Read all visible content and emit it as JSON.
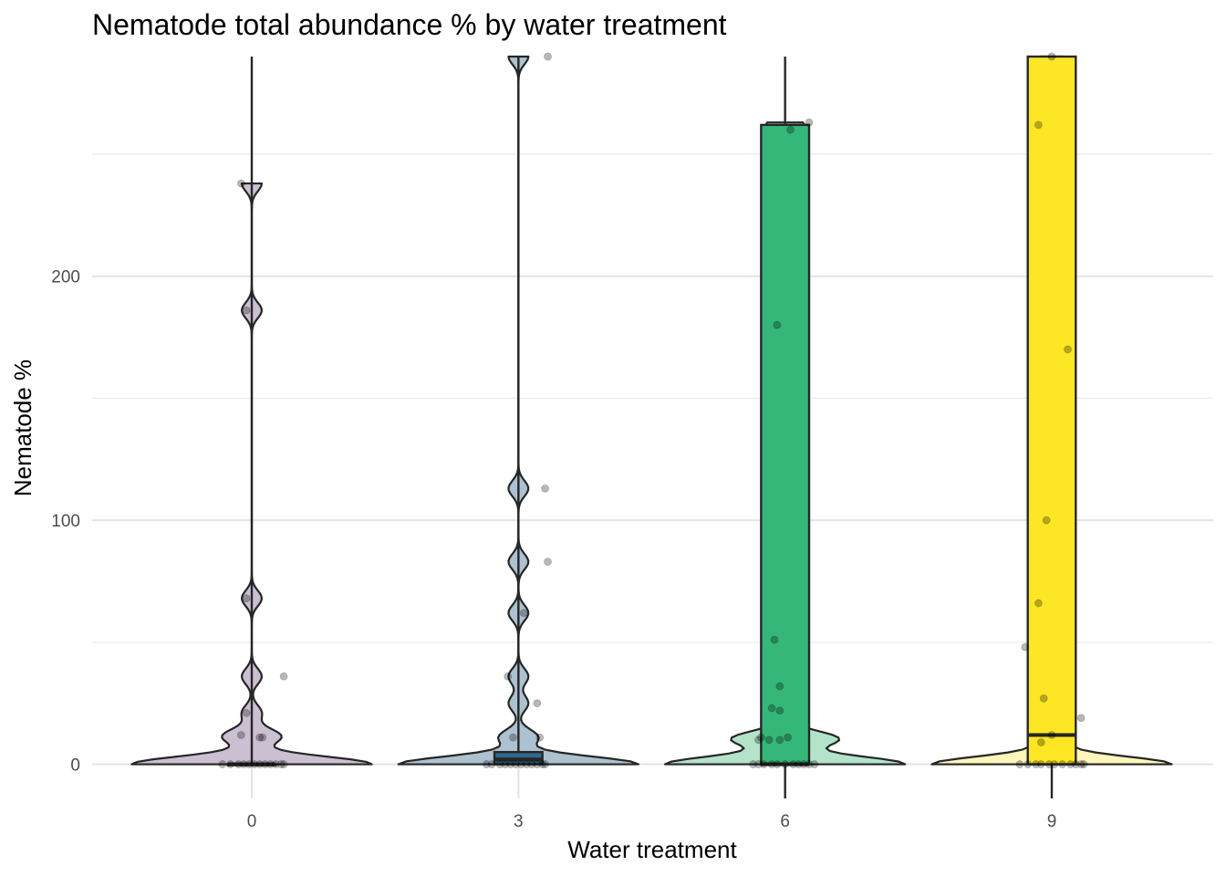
{
  "chart_data": {
    "type": "violin",
    "title": "Nematode total abundance % by water treatment",
    "xlabel": "Water treatment",
    "ylabel": "Nematode %",
    "categories": [
      "0",
      "3",
      "6",
      "9"
    ],
    "ylim": [
      -14,
      290
    ],
    "yticks": [
      0,
      100,
      200
    ],
    "grid": true,
    "legend": "none",
    "colors": {
      "0": "#440154",
      "3": "#31688e",
      "6": "#35b779",
      "9": "#fde725"
    },
    "groups": [
      {
        "category": "0",
        "violin_fill": "#cbbfd2",
        "box": {
          "q1": 0,
          "median": 0,
          "q3": 0,
          "whisker_low": 0,
          "whisker_high": 290
        },
        "points": [
          {
            "x": -0.11,
            "y": 0
          },
          {
            "x": -0.08,
            "y": 0
          },
          {
            "x": -0.05,
            "y": 0
          },
          {
            "x": -0.03,
            "y": 0
          },
          {
            "x": -0.01,
            "y": 0
          },
          {
            "x": 0.01,
            "y": 0
          },
          {
            "x": 0.03,
            "y": 0
          },
          {
            "x": 0.05,
            "y": 0
          },
          {
            "x": 0.07,
            "y": 0
          },
          {
            "x": 0.09,
            "y": 0
          },
          {
            "x": 0.11,
            "y": 0
          },
          {
            "x": 0.12,
            "y": 0
          },
          {
            "x": -0.04,
            "y": 12
          },
          {
            "x": -0.02,
            "y": 21
          },
          {
            "x": 0.03,
            "y": 11
          },
          {
            "x": 0.04,
            "y": 11
          },
          {
            "x": 0.12,
            "y": 36
          },
          {
            "x": -0.02,
            "y": 68
          },
          {
            "x": -0.02,
            "y": 186
          },
          {
            "x": -0.04,
            "y": 238
          }
        ]
      },
      {
        "category": "3",
        "violin_fill": "#acc2d1",
        "box": {
          "q1": 0,
          "median": 2,
          "q3": 5,
          "whisker_low": 0,
          "whisker_high": 290
        },
        "points": [
          {
            "x": -0.12,
            "y": 0
          },
          {
            "x": -0.1,
            "y": 0
          },
          {
            "x": -0.07,
            "y": 0
          },
          {
            "x": -0.05,
            "y": 0
          },
          {
            "x": -0.03,
            "y": 0
          },
          {
            "x": -0.01,
            "y": 0
          },
          {
            "x": 0.01,
            "y": 0
          },
          {
            "x": 0.03,
            "y": 0
          },
          {
            "x": 0.05,
            "y": 0
          },
          {
            "x": 0.07,
            "y": 0
          },
          {
            "x": 0.09,
            "y": 0
          },
          {
            "x": 0.1,
            "y": 0
          },
          {
            "x": -0.02,
            "y": 11
          },
          {
            "x": 0.08,
            "y": 11
          },
          {
            "x": -0.04,
            "y": 36
          },
          {
            "x": 0.07,
            "y": 25
          },
          {
            "x": 0.02,
            "y": 62
          },
          {
            "x": 0.11,
            "y": 83
          },
          {
            "x": 0.1,
            "y": 113
          },
          {
            "x": 0.11,
            "y": 290
          }
        ]
      },
      {
        "category": "6",
        "violin_fill": "#b3e4c9",
        "box": {
          "q1": 0,
          "median": 0,
          "q3": 262,
          "whisker_low": -14,
          "whisker_high": 290
        },
        "points": [
          {
            "x": -0.12,
            "y": 0
          },
          {
            "x": -0.1,
            "y": 0
          },
          {
            "x": -0.08,
            "y": 0
          },
          {
            "x": -0.05,
            "y": 0
          },
          {
            "x": -0.03,
            "y": 0
          },
          {
            "x": 0,
            "y": 0
          },
          {
            "x": 0.03,
            "y": 0
          },
          {
            "x": 0.05,
            "y": 0
          },
          {
            "x": 0.07,
            "y": 0
          },
          {
            "x": 0.09,
            "y": 0
          },
          {
            "x": 0.11,
            "y": 0
          },
          {
            "x": -0.1,
            "y": 10
          },
          {
            "x": -0.06,
            "y": 10
          },
          {
            "x": -0.09,
            "y": 11
          },
          {
            "x": -0.02,
            "y": 10
          },
          {
            "x": 0.01,
            "y": 11
          },
          {
            "x": -0.05,
            "y": 23
          },
          {
            "x": -0.02,
            "y": 22
          },
          {
            "x": -0.02,
            "y": 32
          },
          {
            "x": -0.04,
            "y": 51
          },
          {
            "x": -0.03,
            "y": 180
          },
          {
            "x": 0.02,
            "y": 260
          },
          {
            "x": 0.09,
            "y": 263
          }
        ]
      },
      {
        "category": "9",
        "violin_fill": "#fef6bb",
        "box": {
          "q1": 0,
          "median": 12,
          "q3": 290,
          "whisker_low": -14,
          "whisker_high": 290
        },
        "points": [
          {
            "x": -0.12,
            "y": 0
          },
          {
            "x": -0.09,
            "y": 0
          },
          {
            "x": -0.06,
            "y": 0
          },
          {
            "x": -0.04,
            "y": 0
          },
          {
            "x": -0.01,
            "y": 0
          },
          {
            "x": 0.01,
            "y": 0
          },
          {
            "x": 0.04,
            "y": 0
          },
          {
            "x": 0.07,
            "y": 0
          },
          {
            "x": 0.09,
            "y": 0
          },
          {
            "x": 0.11,
            "y": 0
          },
          {
            "x": 0.12,
            "y": 0
          },
          {
            "x": -0.04,
            "y": 9
          },
          {
            "x": 0,
            "y": 12
          },
          {
            "x": 0.11,
            "y": 19
          },
          {
            "x": -0.03,
            "y": 27
          },
          {
            "x": -0.1,
            "y": 48
          },
          {
            "x": -0.05,
            "y": 66
          },
          {
            "x": -0.02,
            "y": 100
          },
          {
            "x": 0.06,
            "y": 170
          },
          {
            "x": -0.05,
            "y": 262
          },
          {
            "x": 0,
            "y": 290
          }
        ]
      }
    ]
  }
}
